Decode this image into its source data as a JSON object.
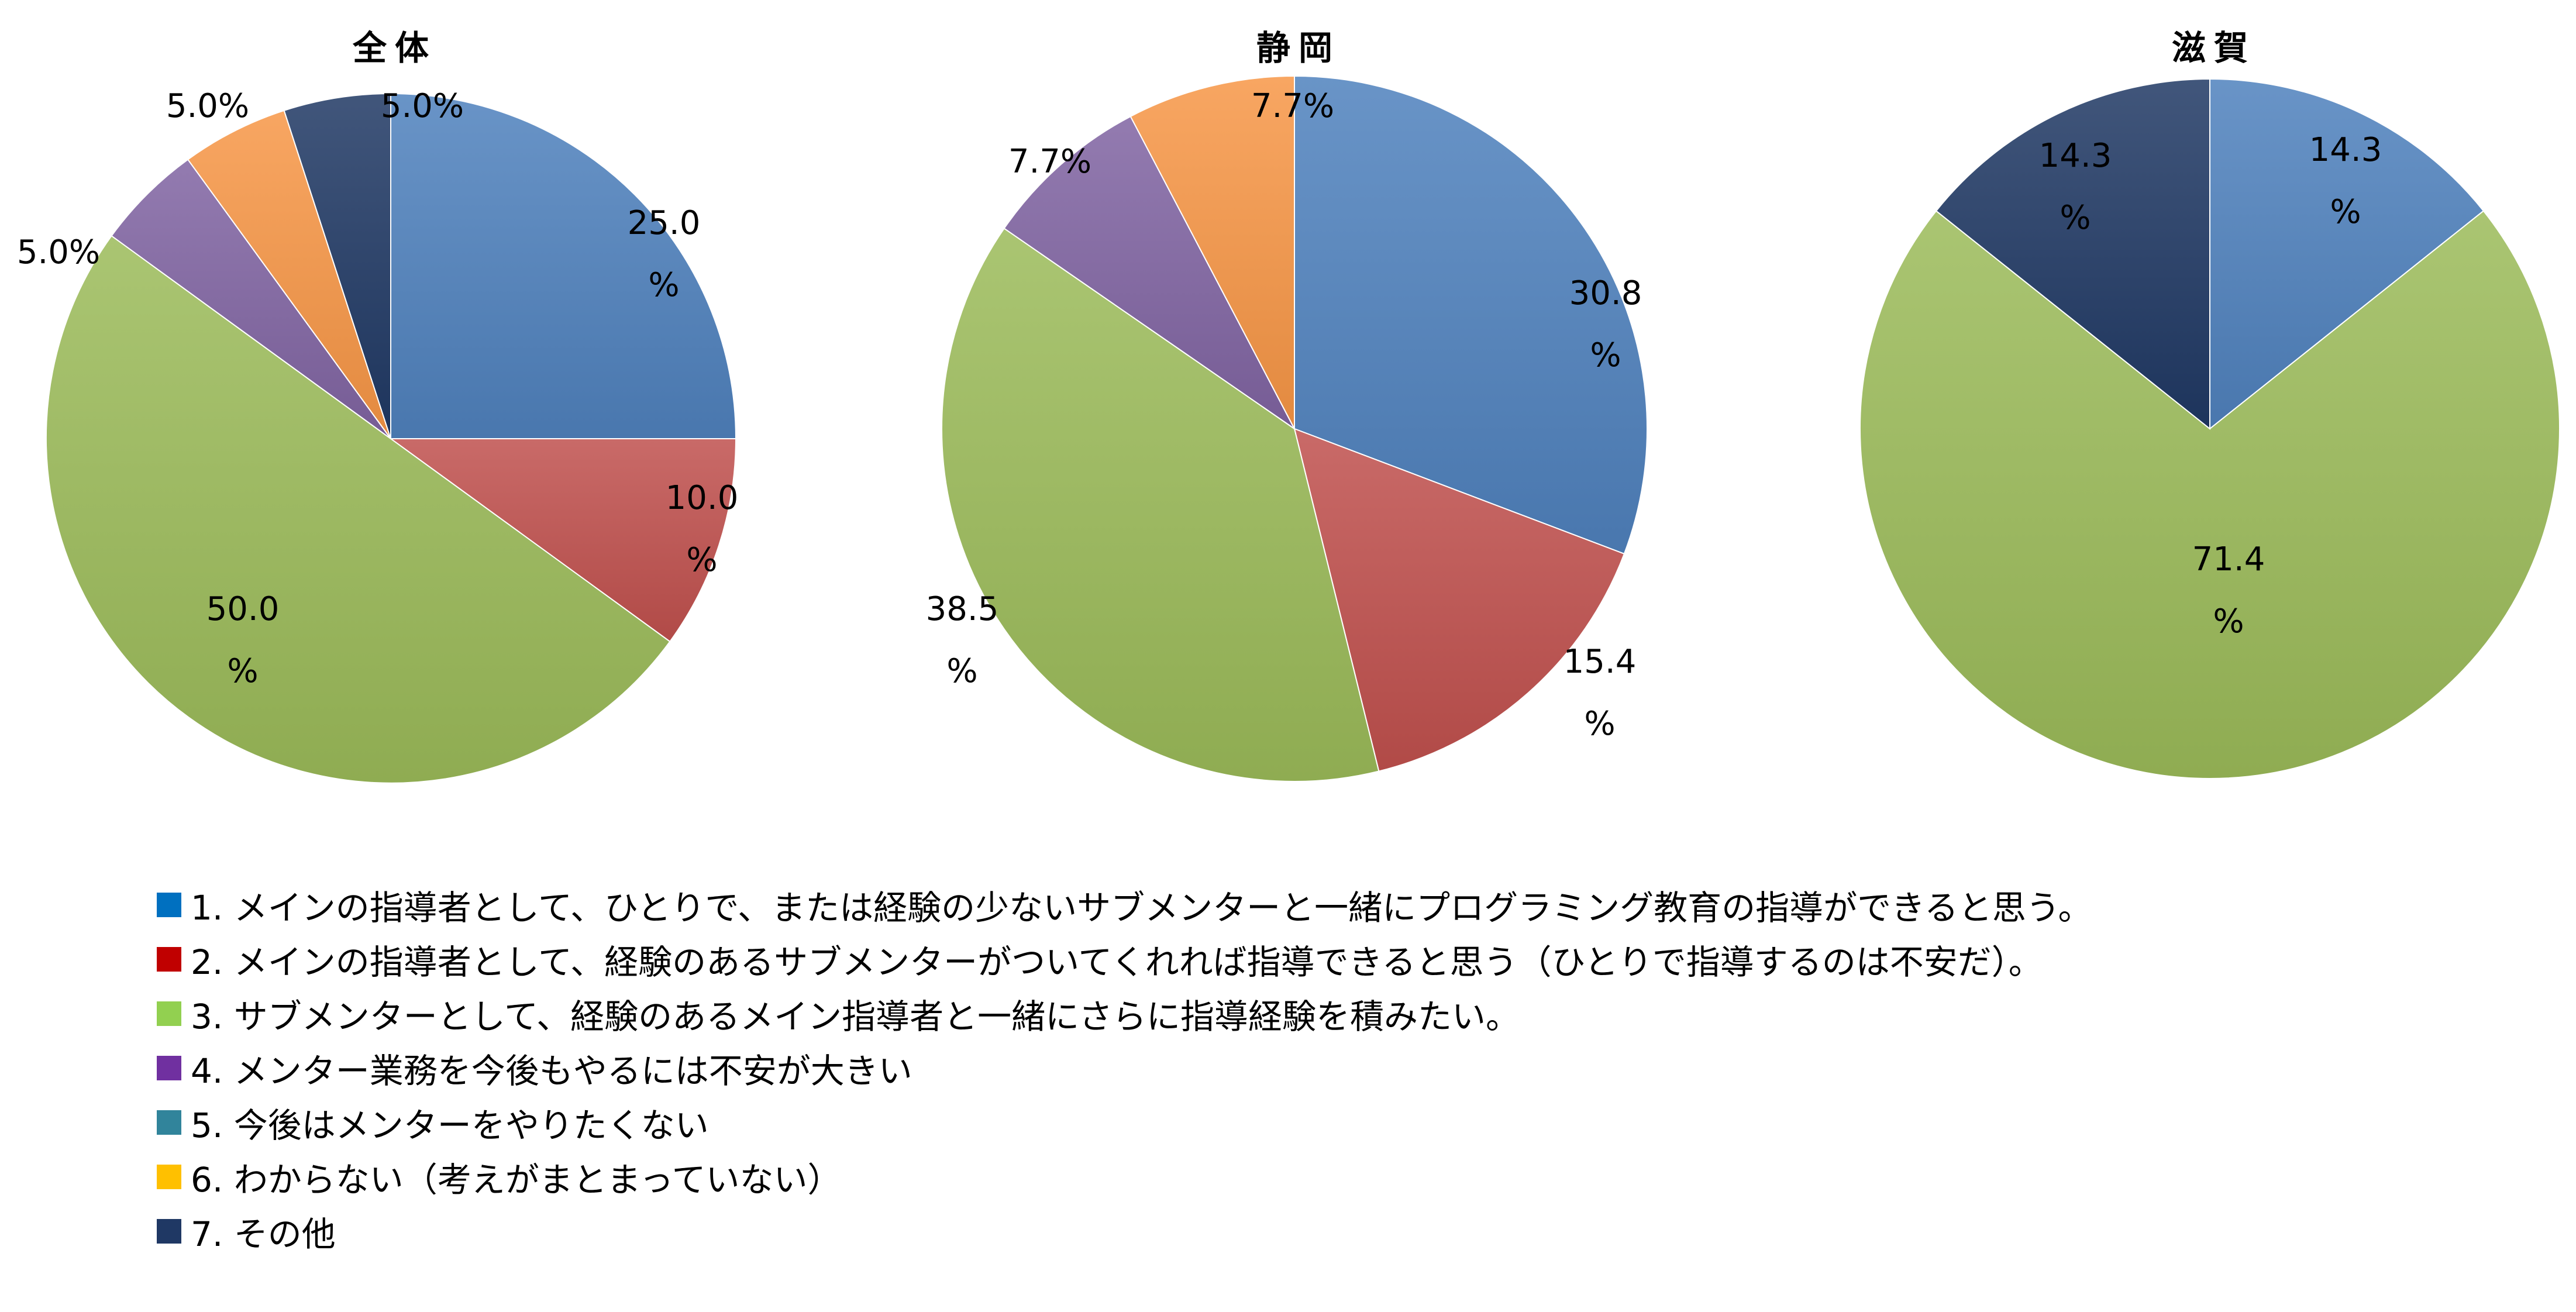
{
  "chart_data": {
    "type": "pie",
    "legend_position": "bottom",
    "categories": [
      "1. メインの指導者として、ひとりで、または経験の少ないサブメンターと一緒にプログラミング教育の指導ができると思う。",
      "2. メインの指導者として、経験のあるサブメンターがついてくれれば指導できると思う（ひとりで指導するのは不安だ）。",
      "3. サブメンターとして、経験のあるメイン指導者と一緒にさらに指導経験を積みたい。",
      "4. メンター業務を今後もやるには不安が大きい",
      "5. 今後はメンターをやりたくない",
      "6. わからない（考えがまとまっていない）",
      "7. その他"
    ],
    "colors": [
      "#4F81BD",
      "#C0504D",
      "#9BBB59",
      "#8064A2",
      "#4BACC6",
      "#F79646",
      "#1F3864"
    ],
    "legend_colors": [
      "#0070C0",
      "#C00000",
      "#92D050",
      "#7030A0",
      "#31849B",
      "#FFC000",
      "#1F3864"
    ],
    "pies": [
      {
        "title": "全体",
        "values": [
          25.0,
          10.0,
          50.0,
          5.0,
          0,
          5.0,
          5.0
        ],
        "labels": [
          [
            "25.0",
            "%"
          ],
          [
            "10.0",
            "%"
          ],
          [
            "50.0",
            "%"
          ],
          [
            "5.0%"
          ],
          null,
          [
            "5.0%"
          ],
          [
            "5.0%"
          ]
        ]
      },
      {
        "title": "静岡",
        "values": [
          30.8,
          15.4,
          38.5,
          7.7,
          0,
          7.7,
          0
        ],
        "labels": [
          [
            "30.8",
            "%"
          ],
          [
            "15.4",
            "%"
          ],
          [
            "38.5",
            "%"
          ],
          [
            "7.7%"
          ],
          null,
          [
            "7.7%"
          ],
          null
        ]
      },
      {
        "title": "滋賀",
        "values": [
          14.3,
          0,
          71.4,
          0,
          0,
          0,
          14.3
        ],
        "labels": [
          [
            "14.3",
            "%"
          ],
          null,
          [
            "71.4",
            "%"
          ],
          null,
          null,
          null,
          [
            "14.3",
            "%"
          ]
        ]
      }
    ]
  }
}
